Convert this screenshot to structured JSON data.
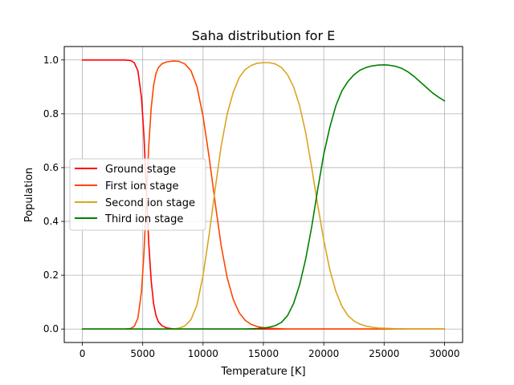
{
  "chart_data": {
    "type": "line",
    "title": "Saha distribution for E",
    "xlabel": "Temperature [K]",
    "ylabel": "Population",
    "xlim": [
      -1500,
      31500
    ],
    "ylim": [
      -0.05,
      1.05
    ],
    "xticks": [
      0,
      5000,
      10000,
      15000,
      20000,
      25000,
      30000
    ],
    "xtick_labels": [
      "0",
      "5000",
      "10000",
      "15000",
      "20000",
      "25000",
      "30000"
    ],
    "yticks": [
      0.0,
      0.2,
      0.4,
      0.6,
      0.8,
      1.0
    ],
    "ytick_labels": [
      "0.0",
      "0.2",
      "0.4",
      "0.6",
      "0.8",
      "1.0"
    ],
    "grid": true,
    "legend_position": "center-left",
    "x": [
      0,
      1000,
      2000,
      3000,
      3500,
      4000,
      4300,
      4600,
      4900,
      5100,
      5300,
      5500,
      5700,
      5900,
      6100,
      6300,
      6600,
      7000,
      7500,
      8000,
      8500,
      9000,
      9500,
      10000,
      10500,
      11000,
      11500,
      12000,
      12500,
      13000,
      13500,
      14000,
      14500,
      15000,
      15500,
      16000,
      16500,
      17000,
      17500,
      18000,
      18500,
      19000,
      19500,
      20000,
      20500,
      21000,
      21500,
      22000,
      22500,
      23000,
      23500,
      24000,
      24500,
      25000,
      25500,
      26000,
      26500,
      27000,
      27500,
      28000,
      28500,
      29000,
      29500,
      30000
    ],
    "series": [
      {
        "name": "Ground stage",
        "color": "#ff0000",
        "values": [
          1.0,
          1.0,
          1.0,
          1.0,
          1.0,
          0.998,
          0.99,
          0.96,
          0.86,
          0.72,
          0.52,
          0.32,
          0.18,
          0.095,
          0.05,
          0.027,
          0.012,
          0.004,
          0.001,
          0.0,
          0.0,
          0.0,
          0.0,
          0.0,
          0.0,
          0.0,
          0.0,
          0.0,
          0.0,
          0.0,
          0.0,
          0.0,
          0.0,
          0.0,
          0.0,
          0.0,
          0.0,
          0.0,
          0.0,
          0.0,
          0.0,
          0.0,
          0.0,
          0.0,
          0.0,
          0.0,
          0.0,
          0.0,
          0.0,
          0.0,
          0.0,
          0.0,
          0.0,
          0.0,
          0.0,
          0.0,
          0.0,
          0.0,
          0.0,
          0.0,
          0.0,
          0.0,
          0.0,
          0.0
        ]
      },
      {
        "name": "First ion stage",
        "color": "#ff4500",
        "values": [
          0.0,
          0.0,
          0.0,
          0.0,
          0.0,
          0.002,
          0.01,
          0.04,
          0.14,
          0.28,
          0.48,
          0.68,
          0.82,
          0.905,
          0.95,
          0.972,
          0.986,
          0.993,
          0.996,
          0.995,
          0.985,
          0.96,
          0.9,
          0.79,
          0.64,
          0.47,
          0.31,
          0.19,
          0.11,
          0.06,
          0.032,
          0.017,
          0.009,
          0.005,
          0.003,
          0.002,
          0.001,
          0.0,
          0.0,
          0.0,
          0.0,
          0.0,
          0.0,
          0.0,
          0.0,
          0.0,
          0.0,
          0.0,
          0.0,
          0.0,
          0.0,
          0.0,
          0.0,
          0.0,
          0.0,
          0.0,
          0.0,
          0.0,
          0.0,
          0.0,
          0.0,
          0.0,
          0.0,
          0.0
        ]
      },
      {
        "name": "Second ion stage",
        "color": "#daa520",
        "values": [
          0.0,
          0.0,
          0.0,
          0.0,
          0.0,
          0.0,
          0.0,
          0.0,
          0.0,
          0.0,
          0.0,
          0.0,
          0.0,
          0.0,
          0.0,
          0.0,
          0.0,
          0.0,
          0.0,
          0.003,
          0.012,
          0.035,
          0.09,
          0.2,
          0.35,
          0.52,
          0.68,
          0.8,
          0.88,
          0.935,
          0.965,
          0.98,
          0.988,
          0.99,
          0.99,
          0.985,
          0.972,
          0.945,
          0.9,
          0.83,
          0.73,
          0.6,
          0.46,
          0.33,
          0.22,
          0.14,
          0.085,
          0.05,
          0.03,
          0.018,
          0.011,
          0.007,
          0.004,
          0.003,
          0.002,
          0.001,
          0.001,
          0.0,
          0.0,
          0.0,
          0.0,
          0.0,
          0.0,
          0.0
        ]
      },
      {
        "name": "Third ion stage",
        "color": "#008000",
        "values": [
          0.0,
          0.0,
          0.0,
          0.0,
          0.0,
          0.0,
          0.0,
          0.0,
          0.0,
          0.0,
          0.0,
          0.0,
          0.0,
          0.0,
          0.0,
          0.0,
          0.0,
          0.0,
          0.0,
          0.0,
          0.0,
          0.0,
          0.0,
          0.0,
          0.0,
          0.0,
          0.0,
          0.0,
          0.0,
          0.0,
          0.0,
          0.001,
          0.002,
          0.004,
          0.007,
          0.013,
          0.025,
          0.05,
          0.095,
          0.165,
          0.26,
          0.38,
          0.52,
          0.65,
          0.75,
          0.83,
          0.885,
          0.92,
          0.945,
          0.962,
          0.972,
          0.978,
          0.981,
          0.982,
          0.98,
          0.976,
          0.968,
          0.955,
          0.938,
          0.918,
          0.898,
          0.878,
          0.862,
          0.848
        ]
      }
    ]
  }
}
